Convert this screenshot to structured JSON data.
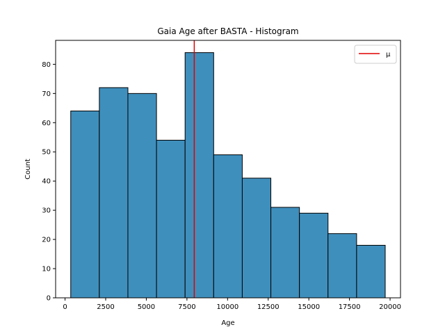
{
  "chart_data": {
    "type": "bar",
    "title": "Gaia Age after BASTA - Histogram",
    "xlabel": "Age",
    "ylabel": "Count",
    "bin_edges": [
      350,
      2109,
      3868,
      5627,
      7386,
      9145,
      10904,
      12663,
      14422,
      16181,
      17940,
      19699
    ],
    "values": [
      64,
      72,
      70,
      54,
      84,
      49,
      41,
      31,
      29,
      22,
      18
    ],
    "bar_color": "#3f8fbd",
    "bar_edge_color": "#000000",
    "mean_line": {
      "x": 7950,
      "label": "μ",
      "color": "#e00000"
    },
    "xlim": [
      -580,
      20640
    ],
    "ylim": [
      0,
      88.2
    ],
    "xticks": [
      0,
      2500,
      5000,
      7500,
      10000,
      12500,
      15000,
      17500,
      20000
    ],
    "xtick_labels": [
      "0",
      "2500",
      "5000",
      "7500",
      "10000",
      "12500",
      "15000",
      "17500",
      "20000"
    ],
    "yticks": [
      0,
      10,
      20,
      30,
      40,
      50,
      60,
      70,
      80
    ],
    "ytick_labels": [
      "0",
      "10",
      "20",
      "30",
      "40",
      "50",
      "60",
      "70",
      "80"
    ],
    "grid": false,
    "legend": {
      "position": "top-right",
      "entries": [
        "μ"
      ]
    }
  }
}
